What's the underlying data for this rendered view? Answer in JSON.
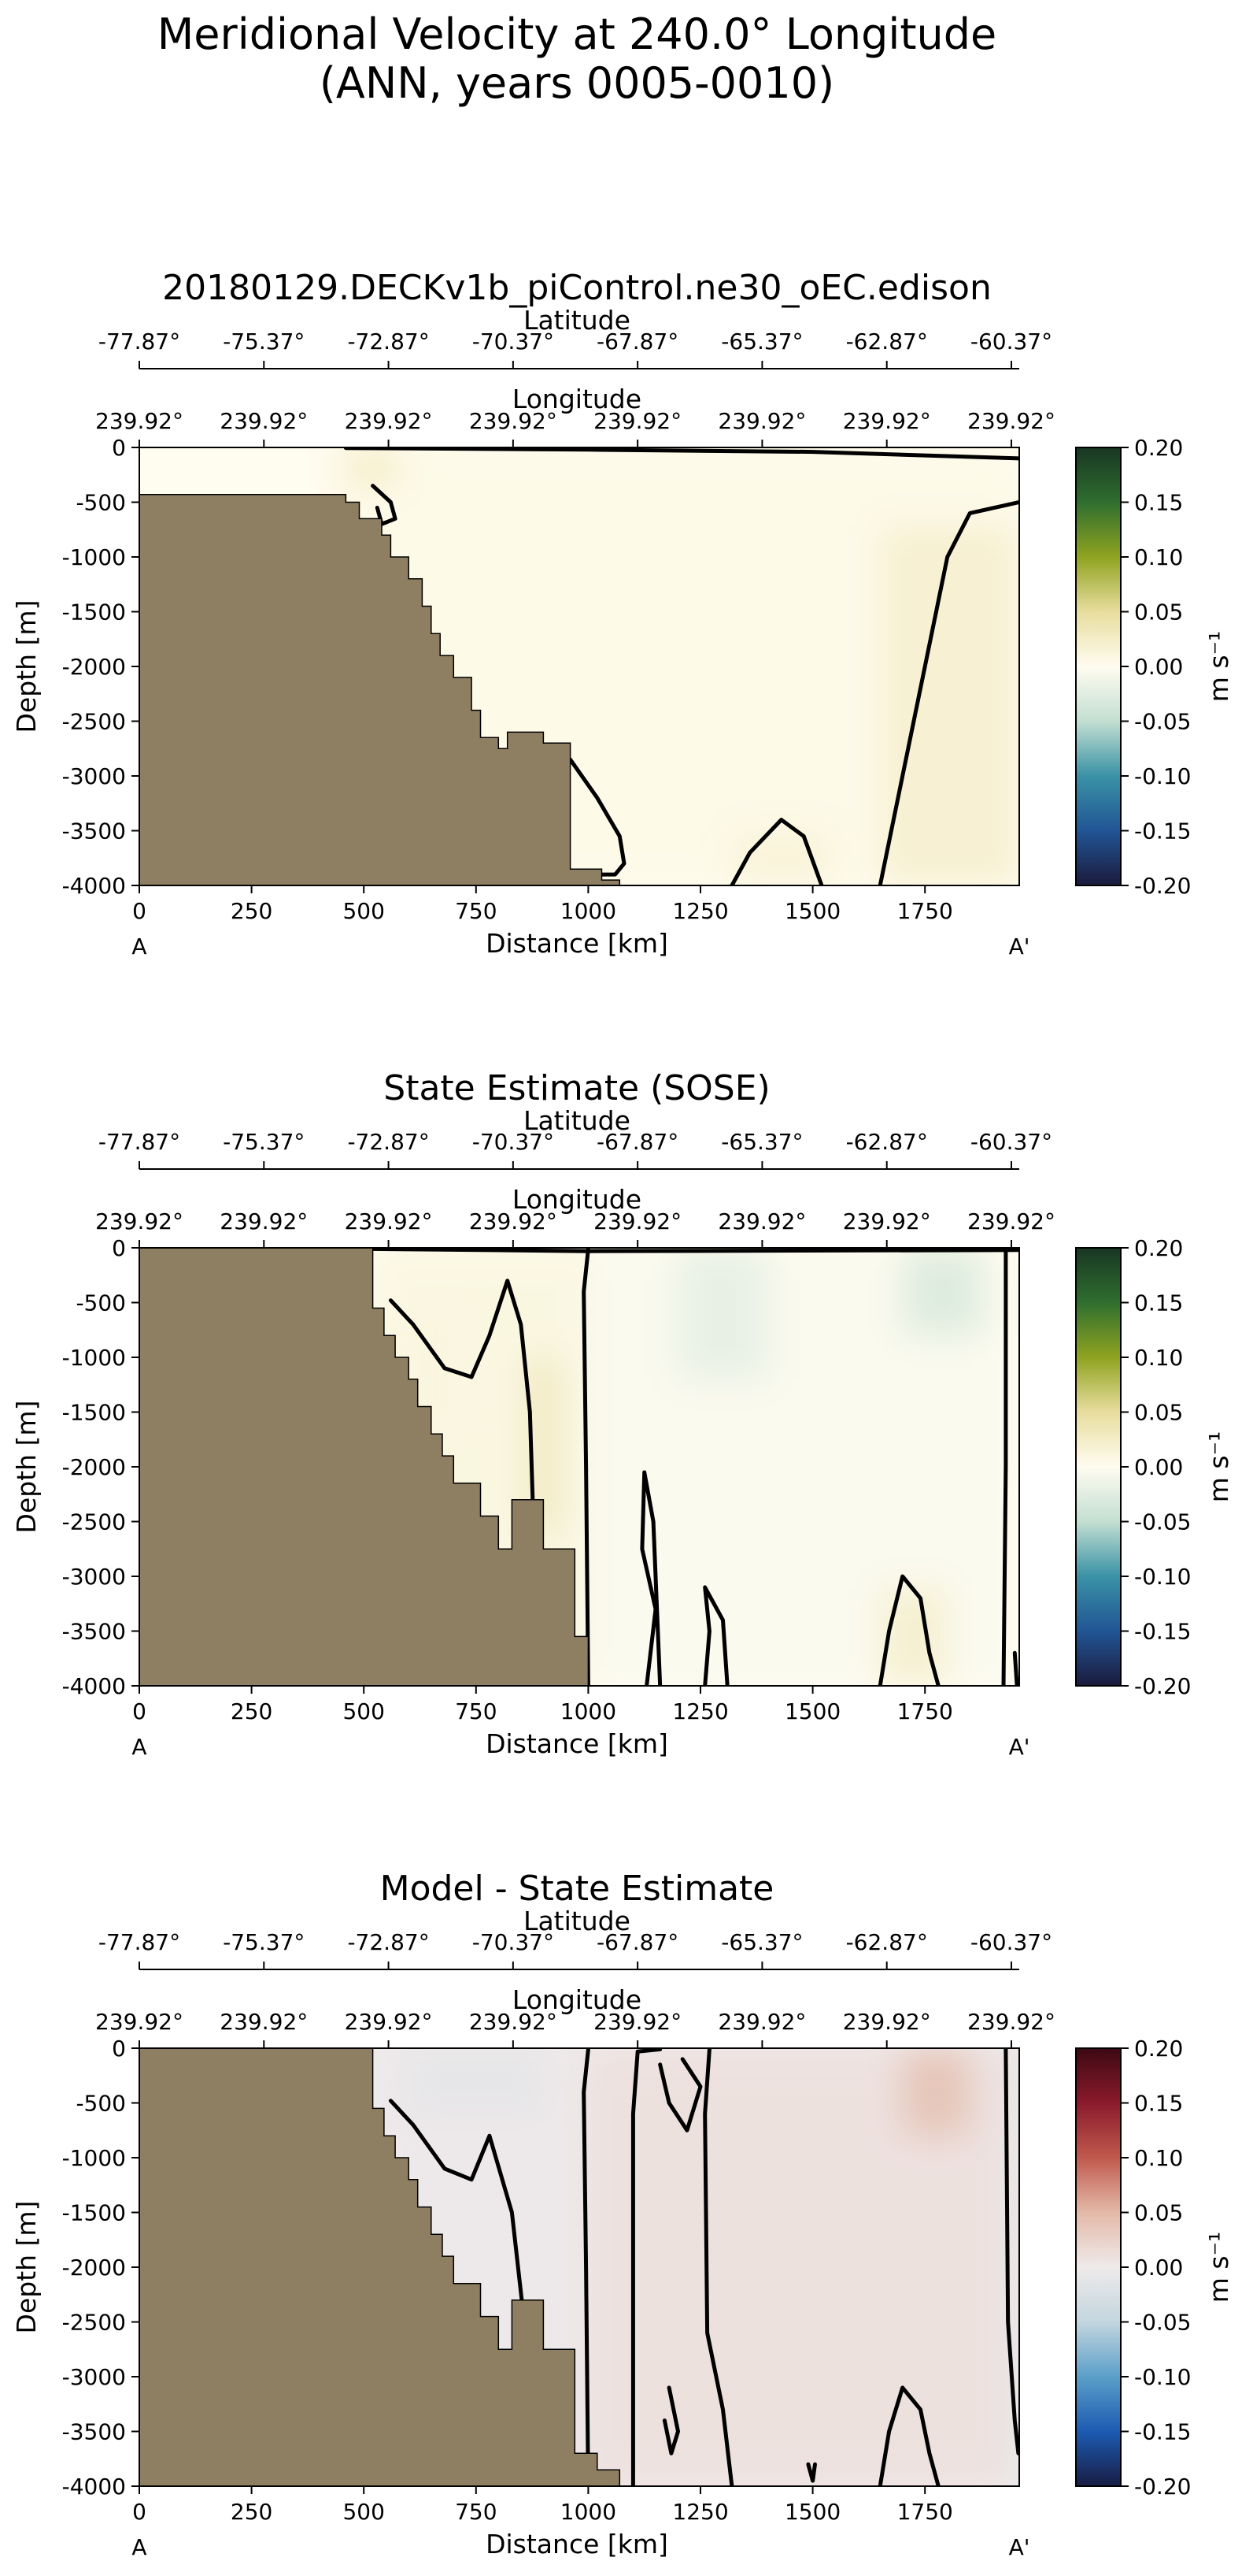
{
  "figure": {
    "title_line1": "Meridional Velocity at 240.0° Longitude",
    "title_line2": "(ANN, years 0005-0010)"
  },
  "chart_data": [
    {
      "type": "heatmap",
      "title": "20180129.DECKv1b_piControl.ne30_oEC.edison",
      "xlabel": "Distance [km]",
      "ylabel": "Depth [m]",
      "xlim": [
        0,
        1960
      ],
      "ylim": [
        -4000,
        0
      ],
      "x_ticks": [
        0,
        250,
        500,
        750,
        1000,
        1250,
        1500,
        1750
      ],
      "y_ticks": [
        0,
        -500,
        -1000,
        -1500,
        -2000,
        -2500,
        -3000,
        -3500,
        -4000
      ],
      "section_start": "A",
      "section_end": "A'",
      "lat_label": "Latitude",
      "lat_ticks": [
        "-77.87°",
        "-75.37°",
        "-72.87°",
        "-70.37°",
        "-67.87°",
        "-65.37°",
        "-62.87°",
        "-60.37°"
      ],
      "lon_label": "Longitude",
      "lon_ticks": [
        "239.92°",
        "239.92°",
        "239.92°",
        "239.92°",
        "239.92°",
        "239.92°",
        "239.92°",
        "239.92°"
      ],
      "colorbar": {
        "label": "m s⁻¹",
        "ticks": [
          "0.20",
          "0.15",
          "0.10",
          "0.05",
          "0.00",
          "-0.05",
          "-0.10",
          "-0.15",
          "-0.20"
        ],
        "range": [
          -0.2,
          0.2
        ],
        "colormap": "delta",
        "stops": [
          "#1b1a3c",
          "#215595",
          "#3a92a6",
          "#c3dfd2",
          "#fffcf0",
          "#e8dd9e",
          "#8fa320",
          "#2f6e2f",
          "#183623"
        ]
      },
      "bathymetry": [
        [
          0,
          -430
        ],
        [
          460,
          -430
        ],
        [
          460,
          -500
        ],
        [
          490,
          -500
        ],
        [
          490,
          -650
        ],
        [
          540,
          -650
        ],
        [
          540,
          -800
        ],
        [
          560,
          -800
        ],
        [
          560,
          -1000
        ],
        [
          600,
          -1000
        ],
        [
          600,
          -1200
        ],
        [
          630,
          -1200
        ],
        [
          630,
          -1450
        ],
        [
          650,
          -1450
        ],
        [
          650,
          -1700
        ],
        [
          670,
          -1700
        ],
        [
          670,
          -1900
        ],
        [
          700,
          -1900
        ],
        [
          700,
          -2100
        ],
        [
          740,
          -2100
        ],
        [
          740,
          -2400
        ],
        [
          760,
          -2400
        ],
        [
          760,
          -2650
        ],
        [
          800,
          -2650
        ],
        [
          800,
          -2750
        ],
        [
          820,
          -2750
        ],
        [
          820,
          -2600
        ],
        [
          900,
          -2600
        ],
        [
          900,
          -2700
        ],
        [
          960,
          -2700
        ],
        [
          960,
          -3850
        ],
        [
          1030,
          -3850
        ],
        [
          1030,
          -3950
        ],
        [
          1070,
          -3950
        ],
        [
          1070,
          -4000
        ],
        [
          0,
          -4000
        ]
      ],
      "value_patches": [
        {
          "x": [
            450,
            1960
          ],
          "y": [
            0,
            -4000
          ],
          "value": 0.005
        },
        {
          "x": [
            1650,
            1960
          ],
          "y": [
            -700,
            -4000
          ],
          "value": 0.02
        },
        {
          "x": [
            1320,
            1540
          ],
          "y": [
            -3500,
            -4000
          ],
          "value": 0.015
        },
        {
          "x": [
            450,
            580
          ],
          "y": [
            0,
            -350
          ],
          "value": 0.025
        }
      ],
      "zero_contours": [
        [
          [
            460,
            -5
          ],
          [
            1000,
            -20
          ],
          [
            1500,
            -40
          ],
          [
            1960,
            -100
          ]
        ],
        [
          [
            1650,
            -4000
          ],
          [
            1700,
            -3000
          ],
          [
            1760,
            -1800
          ],
          [
            1800,
            -1000
          ],
          [
            1850,
            -600
          ],
          [
            1960,
            -500
          ]
        ],
        [
          [
            1320,
            -4000
          ],
          [
            1360,
            -3700
          ],
          [
            1430,
            -3400
          ],
          [
            1480,
            -3550
          ],
          [
            1520,
            -4000
          ]
        ],
        [
          [
            960,
            -2850
          ],
          [
            1020,
            -3200
          ],
          [
            1070,
            -3550
          ],
          [
            1080,
            -3800
          ],
          [
            1060,
            -3900
          ],
          [
            980,
            -3900
          ]
        ],
        [
          [
            520,
            -350
          ],
          [
            560,
            -500
          ],
          [
            570,
            -650
          ],
          [
            540,
            -700
          ],
          [
            530,
            -550
          ]
        ]
      ]
    },
    {
      "type": "heatmap",
      "title": "State Estimate (SOSE)",
      "xlabel": "Distance [km]",
      "ylabel": "Depth [m]",
      "xlim": [
        0,
        1960
      ],
      "ylim": [
        -4000,
        0
      ],
      "x_ticks": [
        0,
        250,
        500,
        750,
        1000,
        1250,
        1500,
        1750
      ],
      "y_ticks": [
        0,
        -500,
        -1000,
        -1500,
        -2000,
        -2500,
        -3000,
        -3500,
        -4000
      ],
      "section_start": "A",
      "section_end": "A'",
      "lat_label": "Latitude",
      "lat_ticks": [
        "-77.87°",
        "-75.37°",
        "-72.87°",
        "-70.37°",
        "-67.87°",
        "-65.37°",
        "-62.87°",
        "-60.37°"
      ],
      "lon_label": "Longitude",
      "lon_ticks": [
        "239.92°",
        "239.92°",
        "239.92°",
        "239.92°",
        "239.92°",
        "239.92°",
        "239.92°",
        "239.92°"
      ],
      "colorbar": {
        "label": "m s⁻¹",
        "ticks": [
          "0.20",
          "0.15",
          "0.10",
          "0.05",
          "0.00",
          "-0.05",
          "-0.10",
          "-0.15",
          "-0.20"
        ],
        "range": [
          -0.2,
          0.2
        ],
        "colormap": "delta",
        "stops": [
          "#1b1a3c",
          "#215595",
          "#3a92a6",
          "#c3dfd2",
          "#fffcf0",
          "#e8dd9e",
          "#8fa320",
          "#2f6e2f",
          "#183623"
        ]
      },
      "bathymetry": [
        [
          0,
          0
        ],
        [
          520,
          0
        ],
        [
          520,
          -550
        ],
        [
          545,
          -550
        ],
        [
          545,
          -800
        ],
        [
          570,
          -800
        ],
        [
          570,
          -1000
        ],
        [
          600,
          -1000
        ],
        [
          600,
          -1200
        ],
        [
          620,
          -1200
        ],
        [
          620,
          -1450
        ],
        [
          650,
          -1450
        ],
        [
          650,
          -1700
        ],
        [
          675,
          -1700
        ],
        [
          675,
          -1900
        ],
        [
          700,
          -1900
        ],
        [
          700,
          -2150
        ],
        [
          760,
          -2150
        ],
        [
          760,
          -2450
        ],
        [
          800,
          -2450
        ],
        [
          800,
          -2750
        ],
        [
          830,
          -2750
        ],
        [
          830,
          -2300
        ],
        [
          900,
          -2300
        ],
        [
          900,
          -2750
        ],
        [
          970,
          -2750
        ],
        [
          970,
          -3550
        ],
        [
          1000,
          -3550
        ],
        [
          1000,
          -4000
        ],
        [
          0,
          -4000
        ]
      ],
      "value_patches": [
        {
          "x": [
            520,
            1000
          ],
          "y": [
            0,
            -4000
          ],
          "value": 0.01
        },
        {
          "x": [
            1000,
            1930
          ],
          "y": [
            0,
            -4000
          ],
          "value": -0.004
        },
        {
          "x": [
            1700,
            1880
          ],
          "y": [
            0,
            -800
          ],
          "value": -0.03
        },
        {
          "x": [
            1200,
            1400
          ],
          "y": [
            0,
            -1200
          ],
          "value": -0.02
        },
        {
          "x": [
            860,
            940
          ],
          "y": [
            -1000,
            -2600
          ],
          "value": 0.03
        },
        {
          "x": [
            600,
            720
          ],
          "y": [
            -600,
            -1600
          ],
          "value": 0.01
        },
        {
          "x": [
            1650,
            1800
          ],
          "y": [
            -3100,
            -4000
          ],
          "value": 0.02
        }
      ],
      "zero_contours": [
        [
          [
            520,
            -10
          ],
          [
            1000,
            -30
          ],
          [
            1960,
            -20
          ]
        ],
        [
          [
            1000,
            -4000
          ],
          [
            995,
            -2000
          ],
          [
            990,
            -400
          ],
          [
            1000,
            -10
          ]
        ],
        [
          [
            1930,
            -10
          ],
          [
            1930,
            -2000
          ],
          [
            1925,
            -4000
          ]
        ],
        [
          [
            560,
            -480
          ],
          [
            610,
            -700
          ],
          [
            680,
            -1100
          ],
          [
            740,
            -1180
          ],
          [
            780,
            -800
          ],
          [
            820,
            -300
          ],
          [
            850,
            -700
          ],
          [
            870,
            -1500
          ],
          [
            880,
            -2800
          ]
        ],
        [
          [
            1130,
            -4000
          ],
          [
            1150,
            -3300
          ],
          [
            1120,
            -2750
          ],
          [
            1125,
            -2050
          ],
          [
            1145,
            -2500
          ],
          [
            1160,
            -4000
          ]
        ],
        [
          [
            1260,
            -4000
          ],
          [
            1270,
            -3500
          ],
          [
            1260,
            -3100
          ],
          [
            1300,
            -3400
          ],
          [
            1310,
            -4000
          ]
        ],
        [
          [
            1650,
            -4000
          ],
          [
            1670,
            -3500
          ],
          [
            1700,
            -3000
          ],
          [
            1740,
            -3200
          ],
          [
            1760,
            -3700
          ],
          [
            1780,
            -4000
          ]
        ],
        [
          [
            1950,
            -3700
          ],
          [
            1955,
            -4000
          ]
        ]
      ]
    },
    {
      "type": "heatmap",
      "title": "Model - State Estimate",
      "xlabel": "Distance [km]",
      "ylabel": "Depth [m]",
      "xlim": [
        0,
        1960
      ],
      "ylim": [
        -4000,
        0
      ],
      "x_ticks": [
        0,
        250,
        500,
        750,
        1000,
        1250,
        1500,
        1750
      ],
      "y_ticks": [
        0,
        -500,
        -1000,
        -1500,
        -2000,
        -2500,
        -3000,
        -3500,
        -4000
      ],
      "section_start": "A",
      "section_end": "A'",
      "lat_label": "Latitude",
      "lat_ticks": [
        "-77.87°",
        "-75.37°",
        "-72.87°",
        "-70.37°",
        "-67.87°",
        "-65.37°",
        "-62.87°",
        "-60.37°"
      ],
      "lon_label": "Longitude",
      "lon_ticks": [
        "239.92°",
        "239.92°",
        "239.92°",
        "239.92°",
        "239.92°",
        "239.92°",
        "239.92°",
        "239.92°"
      ],
      "colorbar": {
        "label": "m s⁻¹",
        "ticks": [
          "0.20",
          "0.15",
          "0.10",
          "0.05",
          "0.00",
          "-0.05",
          "-0.10",
          "-0.15",
          "-0.20"
        ],
        "range": [
          -0.2,
          0.2
        ],
        "colormap": "balance",
        "stops": [
          "#181c43",
          "#1c5bb2",
          "#5b9fc9",
          "#c3d6df",
          "#efeaea",
          "#e4b9a8",
          "#c0594d",
          "#8a1a2c",
          "#3c0912"
        ]
      },
      "bathymetry": [
        [
          0,
          0
        ],
        [
          520,
          0
        ],
        [
          520,
          -550
        ],
        [
          545,
          -550
        ],
        [
          545,
          -800
        ],
        [
          570,
          -800
        ],
        [
          570,
          -1000
        ],
        [
          600,
          -1000
        ],
        [
          600,
          -1200
        ],
        [
          620,
          -1200
        ],
        [
          620,
          -1450
        ],
        [
          650,
          -1450
        ],
        [
          650,
          -1700
        ],
        [
          675,
          -1700
        ],
        [
          675,
          -1900
        ],
        [
          700,
          -1900
        ],
        [
          700,
          -2150
        ],
        [
          760,
          -2150
        ],
        [
          760,
          -2450
        ],
        [
          800,
          -2450
        ],
        [
          800,
          -2750
        ],
        [
          830,
          -2750
        ],
        [
          830,
          -2300
        ],
        [
          900,
          -2300
        ],
        [
          900,
          -2750
        ],
        [
          970,
          -2750
        ],
        [
          970,
          -3700
        ],
        [
          1020,
          -3700
        ],
        [
          1020,
          -3850
        ],
        [
          1070,
          -3850
        ],
        [
          1070,
          -4000
        ],
        [
          0,
          -4000
        ]
      ],
      "value_patches": [
        {
          "x": [
            1000,
            1930
          ],
          "y": [
            0,
            -4000
          ],
          "value": 0.01
        },
        {
          "x": [
            520,
            1000
          ],
          "y": [
            0,
            -4000
          ],
          "value": -0.002
        },
        {
          "x": [
            1700,
            1850
          ],
          "y": [
            0,
            -800
          ],
          "value": 0.04
        },
        {
          "x": [
            1930,
            1960
          ],
          "y": [
            0,
            -4000
          ],
          "value": -0.015
        },
        {
          "x": [
            600,
            900
          ],
          "y": [
            0,
            -600
          ],
          "value": -0.01
        }
      ],
      "zero_contours": [
        [
          [
            1000,
            -4000
          ],
          [
            995,
            -2000
          ],
          [
            990,
            -400
          ],
          [
            1000,
            -10
          ]
        ],
        [
          [
            1100,
            -4000
          ],
          [
            1100,
            -600
          ],
          [
            1110,
            -30
          ],
          [
            1160,
            -10
          ]
        ],
        [
          [
            1270,
            -10
          ],
          [
            1260,
            -600
          ],
          [
            1265,
            -2600
          ],
          [
            1300,
            -3300
          ],
          [
            1320,
            -4000
          ]
        ],
        [
          [
            1160,
            -150
          ],
          [
            1180,
            -500
          ],
          [
            1220,
            -750
          ],
          [
            1250,
            -350
          ],
          [
            1210,
            -100
          ]
        ],
        [
          [
            560,
            -480
          ],
          [
            610,
            -700
          ],
          [
            680,
            -1100
          ],
          [
            740,
            -1200
          ],
          [
            780,
            -800
          ],
          [
            830,
            -1500
          ],
          [
            860,
            -2600
          ],
          [
            880,
            -3300
          ],
          [
            900,
            -4000
          ]
        ],
        [
          [
            1650,
            -4000
          ],
          [
            1670,
            -3500
          ],
          [
            1700,
            -3100
          ],
          [
            1740,
            -3300
          ],
          [
            1760,
            -3700
          ],
          [
            1780,
            -4000
          ]
        ],
        [
          [
            1930,
            -10
          ],
          [
            1935,
            -2500
          ],
          [
            1950,
            -3400
          ],
          [
            1958,
            -3700
          ]
        ],
        [
          [
            1180,
            -3100
          ],
          [
            1200,
            -3500
          ],
          [
            1185,
            -3700
          ],
          [
            1170,
            -3400
          ]
        ],
        [
          [
            1490,
            -3800
          ],
          [
            1500,
            -3950
          ],
          [
            1505,
            -3800
          ]
        ]
      ]
    }
  ]
}
